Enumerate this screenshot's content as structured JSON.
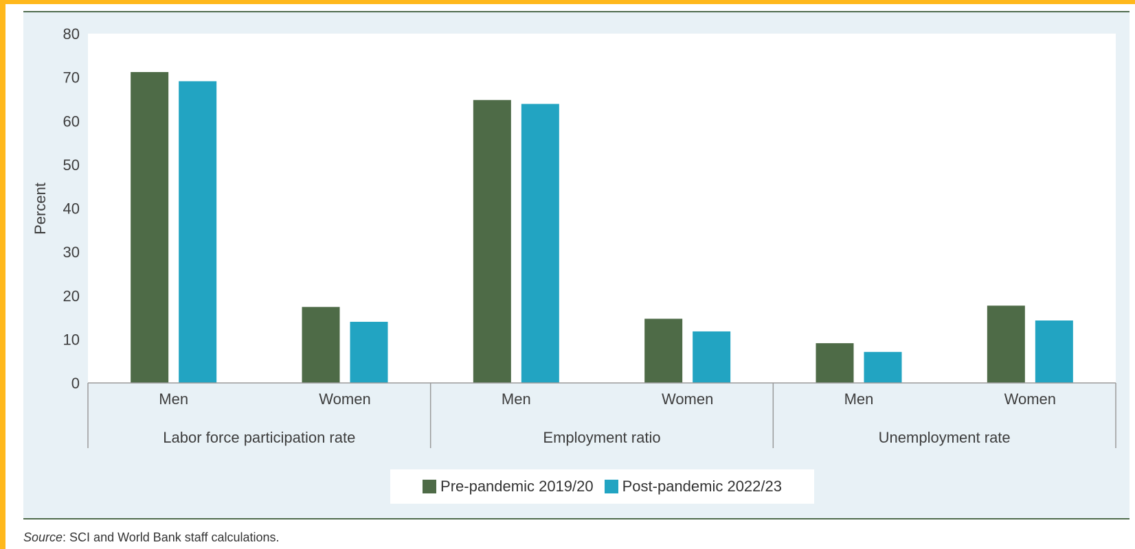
{
  "chart_data": {
    "type": "bar",
    "ylabel": "Percent",
    "ylim": [
      0,
      80
    ],
    "yticks": [
      0,
      10,
      20,
      30,
      40,
      50,
      60,
      70,
      80
    ],
    "groups": [
      "Labor force participation rate",
      "Employment ratio",
      "Unemployment rate"
    ],
    "subcategories": [
      "Men",
      "Women"
    ],
    "series": [
      {
        "name": "Pre-pandemic 2019/20",
        "color": "#4E6B47",
        "values": [
          [
            71.2,
            17.4
          ],
          [
            64.8,
            14.7
          ],
          [
            9.1,
            17.7
          ]
        ]
      },
      {
        "name": "Post-pandemic 2022/23",
        "color": "#22A4C2",
        "values": [
          [
            69.1,
            14.0
          ],
          [
            63.9,
            11.8
          ],
          [
            7.1,
            14.3
          ]
        ]
      }
    ],
    "legend_position": "bottom-center"
  },
  "source": {
    "label": "Source",
    "text": ": SCI and World Bank staff calculations."
  }
}
